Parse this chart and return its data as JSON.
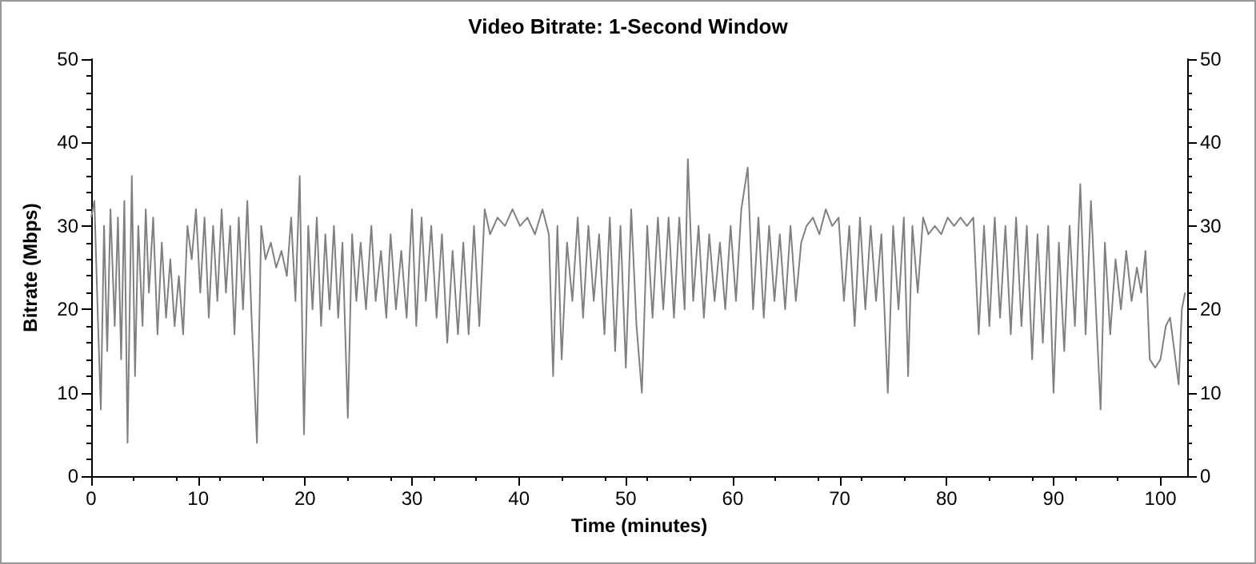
{
  "chart_data": {
    "type": "line",
    "title": "Video Bitrate: 1-Second Window",
    "xlabel": "Time (minutes)",
    "ylabel": "Bitrate (Mbps)",
    "x": [
      0,
      0.3,
      0.6,
      0.9,
      1.2,
      1.5,
      1.8,
      2.2,
      2.5,
      2.8,
      3.1,
      3.4,
      3.8,
      4.1,
      4.4,
      4.8,
      5.1,
      5.4,
      5.8,
      6.2,
      6.6,
      7.0,
      7.4,
      7.8,
      8.2,
      8.6,
      9.0,
      9.4,
      9.8,
      10.2,
      10.6,
      11.0,
      11.4,
      11.8,
      12.2,
      12.6,
      13.0,
      13.4,
      13.8,
      14.2,
      14.6,
      15.0,
      15.5,
      15.9,
      16.3,
      16.8,
      17.3,
      17.8,
      18.3,
      18.7,
      19.1,
      19.5,
      19.9,
      20.3,
      20.7,
      21.1,
      21.5,
      21.9,
      22.3,
      22.7,
      23.1,
      23.5,
      24.0,
      24.4,
      24.8,
      25.2,
      25.7,
      26.2,
      26.6,
      27.1,
      27.6,
      28.0,
      28.5,
      29.0,
      29.5,
      30.0,
      30.4,
      30.9,
      31.3,
      31.8,
      32.3,
      32.8,
      33.3,
      33.8,
      34.3,
      34.8,
      35.3,
      35.8,
      36.3,
      36.8,
      37.3,
      38.0,
      38.7,
      39.4,
      40.1,
      40.8,
      41.5,
      42.2,
      42.8,
      43.2,
      43.6,
      44.0,
      44.5,
      45.0,
      45.5,
      46.0,
      46.5,
      47.0,
      47.5,
      48.0,
      48.5,
      49.0,
      49.5,
      50.0,
      50.5,
      51.0,
      51.5,
      52.0,
      52.5,
      53.0,
      53.5,
      54.0,
      54.5,
      55.0,
      55.5,
      55.8,
      56.3,
      56.8,
      57.3,
      57.8,
      58.3,
      58.8,
      59.3,
      59.8,
      60.3,
      60.8,
      61.4,
      61.9,
      62.4,
      62.9,
      63.4,
      63.9,
      64.4,
      64.9,
      65.4,
      65.9,
      66.4,
      66.9,
      67.5,
      68.1,
      68.7,
      69.3,
      69.9,
      70.4,
      70.9,
      71.4,
      71.9,
      72.4,
      72.9,
      73.4,
      73.9,
      74.5,
      75.0,
      75.5,
      76.0,
      76.4,
      76.8,
      77.3,
      77.8,
      78.3,
      78.9,
      79.5,
      80.1,
      80.7,
      81.3,
      81.9,
      82.5,
      83.0,
      83.5,
      84.0,
      84.5,
      85.0,
      85.5,
      86.0,
      86.5,
      87.0,
      87.5,
      88.0,
      88.5,
      89.0,
      89.5,
      90.0,
      90.5,
      91.0,
      91.5,
      92.0,
      92.5,
      93.0,
      93.5,
      94.0,
      94.4,
      94.8,
      95.3,
      95.8,
      96.3,
      96.8,
      97.3,
      97.8,
      98.2,
      98.6,
      99.0,
      99.5,
      100.0,
      100.5,
      100.9,
      101.3,
      101.7,
      102.0,
      102.3
    ],
    "values": [
      31,
      33,
      20,
      8,
      30,
      15,
      32,
      18,
      31,
      14,
      33,
      4,
      36,
      12,
      30,
      18,
      32,
      22,
      31,
      17,
      28,
      19,
      26,
      18,
      24,
      17,
      30,
      26,
      32,
      22,
      31,
      19,
      30,
      21,
      32,
      22,
      30,
      17,
      31,
      20,
      33,
      19,
      4,
      30,
      26,
      28,
      25,
      27,
      24,
      31,
      21,
      36,
      5,
      30,
      20,
      31,
      18,
      29,
      20,
      30,
      19,
      28,
      7,
      29,
      21,
      28,
      20,
      30,
      21,
      27,
      19,
      29,
      20,
      27,
      19,
      32,
      18,
      31,
      21,
      30,
      19,
      29,
      16,
      27,
      17,
      28,
      17,
      30,
      18,
      32,
      29,
      31,
      30,
      32,
      30,
      31,
      29,
      32,
      29,
      12,
      30,
      14,
      28,
      21,
      31,
      19,
      30,
      21,
      29,
      17,
      31,
      15,
      30,
      13,
      32,
      18,
      10,
      30,
      19,
      31,
      20,
      31,
      19,
      31,
      20,
      38,
      21,
      30,
      19,
      29,
      21,
      28,
      20,
      30,
      21,
      32,
      37,
      20,
      31,
      19,
      30,
      21,
      29,
      20,
      30,
      21,
      28,
      30,
      31,
      29,
      32,
      30,
      31,
      21,
      30,
      18,
      31,
      20,
      30,
      21,
      29,
      10,
      30,
      20,
      31,
      12,
      30,
      22,
      31,
      29,
      30,
      29,
      31,
      30,
      31,
      30,
      31,
      17,
      30,
      18,
      31,
      19,
      30,
      17,
      31,
      18,
      30,
      14,
      29,
      16,
      30,
      10,
      28,
      15,
      30,
      18,
      35,
      17,
      33,
      19,
      8,
      28,
      17,
      26,
      20,
      27,
      21,
      25,
      22,
      27,
      14,
      13,
      14,
      18,
      19,
      15,
      11,
      20,
      22
    ],
    "color": "#808080",
    "marker": "none",
    "line_style": "solid",
    "xlim": [
      0,
      102.5
    ],
    "xticks": [
      0,
      10,
      20,
      30,
      40,
      50,
      60,
      70,
      80,
      90,
      100
    ],
    "ylim": [
      0,
      50
    ],
    "yticks": [
      0,
      10,
      20,
      30,
      40,
      50
    ],
    "y2lim": [
      0,
      50
    ],
    "y2ticks": [
      0,
      10,
      20,
      30,
      40,
      50
    ]
  }
}
